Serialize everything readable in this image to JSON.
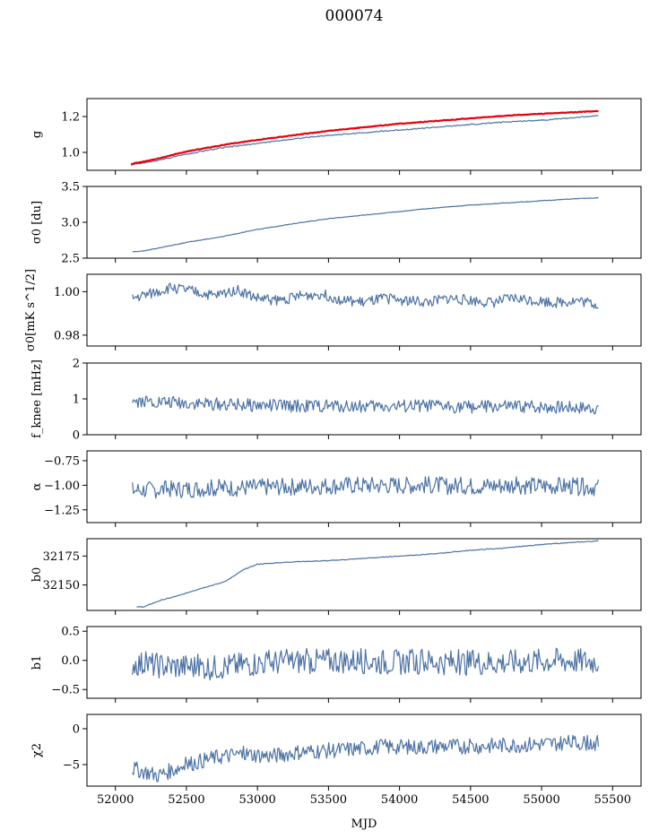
{
  "title": "000074",
  "xlabel": "MJD",
  "colors": {
    "series": "#4c72a4",
    "highlight": "#e8000b"
  },
  "chart_data": [
    {
      "type": "line",
      "ylabel": "g",
      "ylim": [
        0.9,
        1.3
      ],
      "yticks": [
        1.0,
        1.2
      ],
      "yticklabels": [
        "1.0",
        "1.2"
      ],
      "xlim": [
        51800,
        55700
      ],
      "x": [
        52110,
        52300,
        52500,
        52750,
        53000,
        53250,
        53500,
        53750,
        54000,
        54250,
        54500,
        54750,
        55000,
        55250,
        55400
      ],
      "series": [
        {
          "values": [
            0.93,
            0.955,
            0.99,
            1.025,
            1.05,
            1.075,
            1.095,
            1.11,
            1.125,
            1.14,
            1.155,
            1.17,
            1.18,
            1.195,
            1.205
          ]
        },
        {
          "values": [
            0.935,
            0.965,
            1.005,
            1.04,
            1.07,
            1.095,
            1.12,
            1.14,
            1.16,
            1.175,
            1.19,
            1.205,
            1.215,
            1.225,
            1.23
          ]
        }
      ]
    },
    {
      "type": "line",
      "ylabel": "σ0 [du]",
      "ylim": [
        2.5,
        3.5
      ],
      "yticks": [
        2.5,
        3.0,
        3.5
      ],
      "yticklabels": [
        "2.5",
        "3.0",
        "3.5"
      ],
      "xlim": [
        51800,
        55700
      ],
      "x": [
        52120,
        52200,
        52350,
        52500,
        52750,
        53000,
        53250,
        53500,
        53750,
        54000,
        54250,
        54500,
        54750,
        55000,
        55250,
        55400
      ],
      "series": [
        {
          "values": [
            2.59,
            2.6,
            2.66,
            2.72,
            2.8,
            2.9,
            2.98,
            3.05,
            3.1,
            3.15,
            3.2,
            3.24,
            3.27,
            3.3,
            3.33,
            3.34
          ]
        }
      ]
    },
    {
      "type": "line",
      "ylabel": "σ0[mK s^1/2]",
      "ylim": [
        0.975,
        1.008
      ],
      "yticks": [
        0.98,
        1.0
      ],
      "yticklabels": [
        "0.98",
        "1.00"
      ],
      "xlim": [
        51800,
        55700
      ],
      "x": [
        52120,
        52250,
        52400,
        52550,
        52700,
        52850,
        53000,
        53150,
        53300,
        53450,
        53600,
        53750,
        53900,
        54050,
        54200,
        54350,
        54500,
        54650,
        54800,
        54950,
        55100,
        55250,
        55400
      ],
      "series": [
        {
          "values": [
            0.997,
            0.999,
            1.002,
            1.0,
            0.998,
            1.001,
            0.997,
            0.996,
            0.998,
            0.999,
            0.996,
            0.995,
            0.997,
            0.996,
            0.995,
            0.997,
            0.996,
            0.995,
            0.997,
            0.996,
            0.995,
            0.996,
            0.994
          ]
        }
      ]
    },
    {
      "type": "line",
      "ylabel": "f_knee [mHz]",
      "ylim": [
        0,
        2
      ],
      "yticks": [
        0,
        1,
        2
      ],
      "yticklabels": [
        "0",
        "1",
        "2"
      ],
      "xlim": [
        51800,
        55700
      ],
      "x": [
        52120,
        52400,
        52700,
        53000,
        53300,
        53600,
        53900,
        54200,
        54500,
        54800,
        55100,
        55400
      ],
      "series": [
        {
          "values": [
            0.95,
            0.9,
            0.85,
            0.82,
            0.8,
            0.8,
            0.79,
            0.8,
            0.78,
            0.78,
            0.77,
            0.75
          ]
        }
      ]
    },
    {
      "type": "line",
      "ylabel": "α",
      "ylim": [
        -1.38,
        -0.65
      ],
      "yticks": [
        -1.25,
        -1.0,
        -0.75
      ],
      "yticklabels": [
        "−1.25",
        "−1.00",
        "−0.75"
      ],
      "xlim": [
        51800,
        55700
      ],
      "x": [
        52120,
        52400,
        52700,
        53000,
        53300,
        53600,
        53900,
        54200,
        54500,
        54800,
        55100,
        55400
      ],
      "series": [
        {
          "values": [
            -1.05,
            -1.04,
            -1.03,
            -1.02,
            -1.01,
            -1.0,
            -1.0,
            -1.0,
            -1.01,
            -1.0,
            -1.01,
            -1.02
          ]
        }
      ]
    },
    {
      "type": "line",
      "ylabel": "b0",
      "ylim": [
        32128,
        32190
      ],
      "yticks": [
        32150,
        32175
      ],
      "yticklabels": [
        "32150",
        "32175"
      ],
      "xlim": [
        51800,
        55700
      ],
      "x": [
        52150,
        52200,
        52300,
        52450,
        52600,
        52750,
        52800,
        52900,
        53000,
        53250,
        53500,
        53750,
        54000,
        54250,
        54500,
        54750,
        55000,
        55250,
        55400
      ],
      "series": [
        {
          "values": [
            32131,
            32131,
            32136,
            32141,
            32147,
            32152,
            32155,
            32163,
            32168,
            32170,
            32171,
            32173,
            32175,
            32177,
            32180,
            32182,
            32185,
            32187,
            32188
          ]
        }
      ]
    },
    {
      "type": "line",
      "ylabel": "b1",
      "ylim": [
        -0.65,
        0.58
      ],
      "yticks": [
        -0.5,
        0.0,
        0.5
      ],
      "yticklabels": [
        "−0.5",
        "0.0",
        "0.5"
      ],
      "xlim": [
        51800,
        55700
      ],
      "x": [
        52120,
        52400,
        52700,
        53000,
        53300,
        53600,
        53900,
        54200,
        54500,
        54800,
        55100,
        55400
      ],
      "series": [
        {
          "values": [
            -0.05,
            -0.1,
            -0.12,
            -0.05,
            -0.02,
            0.0,
            -0.03,
            -0.02,
            -0.04,
            -0.03,
            0.0,
            -0.02
          ]
        }
      ]
    },
    {
      "type": "line",
      "ylabel": "χ2",
      "ylim": [
        -8,
        2
      ],
      "yticks": [
        -5,
        0
      ],
      "yticklabels": [
        "−5",
        "0"
      ],
      "xlim": [
        51800,
        55700
      ],
      "x": [
        52120,
        52300,
        52500,
        52700,
        52900,
        53100,
        53300,
        53500,
        53700,
        53900,
        54100,
        54300,
        54500,
        54700,
        54900,
        55100,
        55400
      ],
      "series": [
        {
          "values": [
            -5.5,
            -6.5,
            -5.0,
            -4.0,
            -3.5,
            -3.8,
            -3.2,
            -3.0,
            -2.8,
            -2.5,
            -2.6,
            -2.4,
            -2.5,
            -2.3,
            -2.2,
            -2.0,
            -2.0
          ]
        }
      ]
    }
  ],
  "xticks": [
    52000,
    52500,
    53000,
    53500,
    54000,
    54500,
    55000,
    55500
  ],
  "xticklabels": [
    "52000",
    "52500",
    "53000",
    "53500",
    "54000",
    "54500",
    "55000",
    "55500"
  ]
}
